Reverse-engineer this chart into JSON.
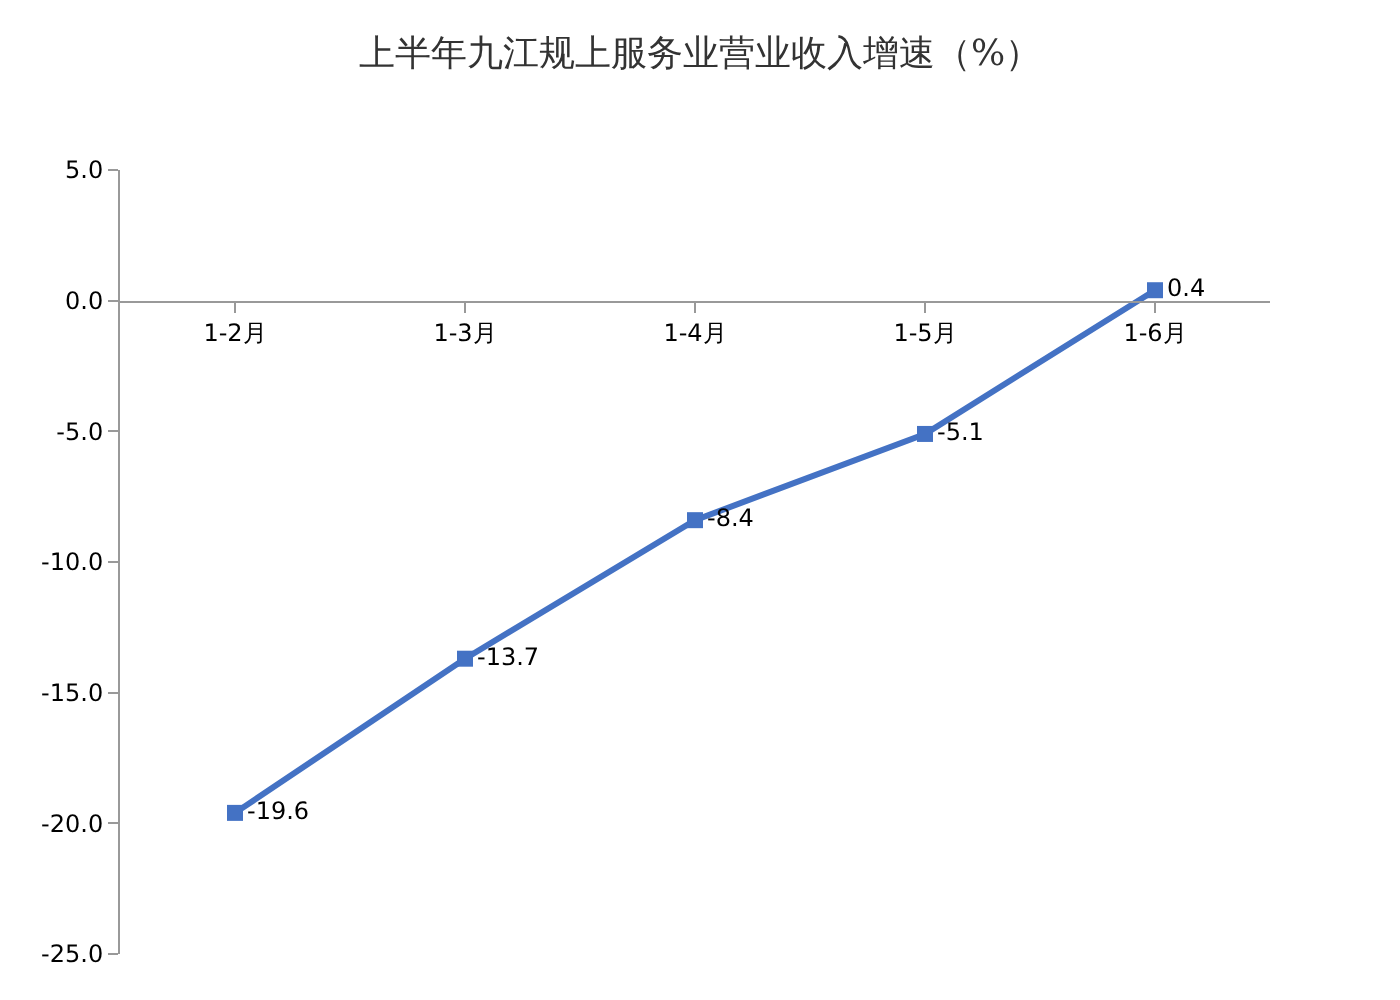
{
  "chart_data": {
    "type": "line",
    "title": "上半年九江规上服务业营业收入增速（%）",
    "categories": [
      "1-2月",
      "1-3月",
      "1-4月",
      "1-5月",
      "1-6月"
    ],
    "series": [
      {
        "color": "#4472c4",
        "values": [
          -19.6,
          -13.7,
          -8.4,
          -5.1,
          0.4
        ]
      }
    ],
    "ylim": [
      -25,
      5
    ],
    "yticks": [
      {
        "value": 5,
        "label": "5.0"
      },
      {
        "value": 0,
        "label": "0.0"
      },
      {
        "value": -5,
        "label": "-5.0"
      },
      {
        "value": -10,
        "label": "-10.0"
      },
      {
        "value": -15,
        "label": "-15.0"
      },
      {
        "value": -20,
        "label": "-20.0"
      },
      {
        "value": -25,
        "label": "-25.0"
      }
    ],
    "grid": false,
    "marker": "square",
    "line_style": "solid",
    "data_labels": true
  }
}
